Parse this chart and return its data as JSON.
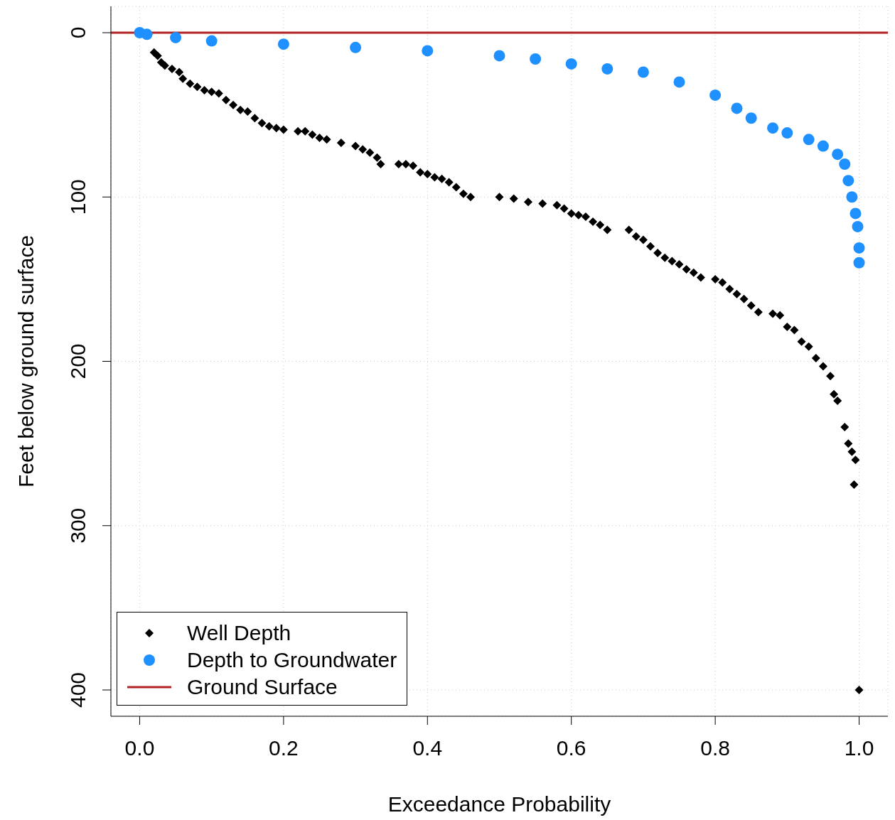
{
  "chart_data": {
    "type": "scatter",
    "xlabel": "Exceedance Probability",
    "ylabel": "Feet below ground surface",
    "xlim": [
      -0.04,
      1.04
    ],
    "xticks": [
      {
        "value": 0,
        "label": "0.0"
      },
      {
        "value": 0.2,
        "label": "0.2"
      },
      {
        "value": 0.4,
        "label": "0.4"
      },
      {
        "value": 0.6,
        "label": "0.6"
      },
      {
        "value": 0.8,
        "label": "0.8"
      },
      {
        "value": 1,
        "label": "1.0"
      }
    ],
    "ylim": [
      416,
      -16
    ],
    "yticks": [
      0,
      100,
      200,
      300,
      400
    ],
    "grid": true,
    "legend": "bottom left",
    "ref_lines": [
      {
        "axis": "y",
        "value": 0,
        "label": "Ground Surface",
        "color": "#b22222"
      }
    ],
    "series": [
      {
        "name": "Well Depth",
        "color": "#000000",
        "marker": "diamond",
        "x": [
          0.02,
          0.025,
          0.03,
          0.035,
          0.045,
          0.055,
          0.06,
          0.07,
          0.08,
          0.09,
          0.1,
          0.11,
          0.12,
          0.13,
          0.14,
          0.15,
          0.16,
          0.17,
          0.18,
          0.19,
          0.2,
          0.22,
          0.23,
          0.24,
          0.25,
          0.26,
          0.28,
          0.3,
          0.31,
          0.32,
          0.33,
          0.335,
          0.36,
          0.37,
          0.38,
          0.39,
          0.4,
          0.41,
          0.42,
          0.43,
          0.44,
          0.45,
          0.46,
          0.5,
          0.52,
          0.54,
          0.56,
          0.58,
          0.59,
          0.6,
          0.61,
          0.62,
          0.63,
          0.64,
          0.65,
          0.68,
          0.69,
          0.7,
          0.71,
          0.72,
          0.73,
          0.74,
          0.75,
          0.76,
          0.77,
          0.78,
          0.8,
          0.81,
          0.82,
          0.83,
          0.84,
          0.85,
          0.86,
          0.88,
          0.89,
          0.9,
          0.91,
          0.92,
          0.93,
          0.94,
          0.95,
          0.96,
          0.965,
          0.97,
          0.98,
          0.985,
          0.99,
          0.995,
          0.993,
          1.0
        ],
        "values": [
          12,
          14,
          18,
          20,
          22,
          24,
          28,
          31,
          33,
          35,
          36,
          37,
          41,
          44,
          47,
          48,
          52,
          55,
          57,
          58,
          59,
          60,
          60,
          62,
          64,
          65,
          67,
          69,
          71,
          73,
          76,
          80,
          80,
          80,
          81,
          85,
          86,
          88,
          89,
          91,
          94,
          98,
          100,
          100,
          101,
          103,
          104,
          105,
          107,
          110,
          111,
          112,
          115,
          117,
          120,
          120,
          124,
          126,
          130,
          134,
          137,
          139,
          141,
          144,
          146,
          149,
          150,
          152,
          156,
          159,
          162,
          166,
          170,
          171,
          172,
          179,
          181,
          188,
          191,
          198,
          203,
          209,
          220,
          224,
          240,
          250,
          255,
          260,
          275,
          400
        ]
      },
      {
        "name": "Depth to Groundwater",
        "color": "#1e90ff",
        "marker": "circle",
        "x": [
          0,
          0.01,
          0.05,
          0.1,
          0.2,
          0.3,
          0.4,
          0.5,
          0.55,
          0.6,
          0.65,
          0.7,
          0.75,
          0.8,
          0.83,
          0.85,
          0.88,
          0.9,
          0.93,
          0.95,
          0.97,
          0.98,
          0.985,
          0.99,
          0.995,
          0.998,
          1.0,
          1.0
        ],
        "values": [
          0,
          1,
          3,
          5,
          7,
          9,
          11,
          14,
          16,
          19,
          22,
          24,
          30,
          38,
          46,
          52,
          58,
          61,
          65,
          69,
          74,
          80,
          90,
          100,
          110,
          118,
          131,
          140
        ]
      }
    ]
  }
}
